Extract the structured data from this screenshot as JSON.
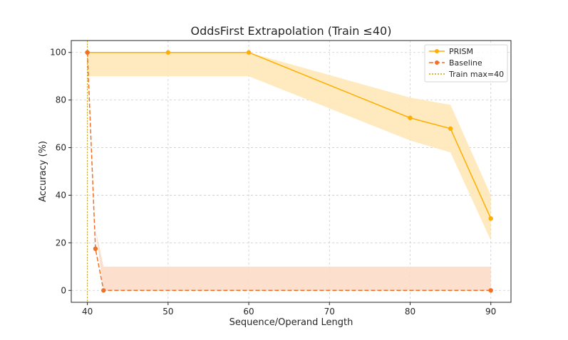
{
  "chart_data": {
    "type": "line",
    "title": "OddsFirst Extrapolation (Train ≤40)",
    "xlabel": "Sequence/Operand Length",
    "ylabel": "Accuracy (%)",
    "xlim": [
      38,
      92.5
    ],
    "ylim": [
      -5,
      105
    ],
    "xticks": [
      40,
      50,
      60,
      70,
      80,
      90
    ],
    "yticks": [
      0,
      20,
      40,
      60,
      80,
      100
    ],
    "grid": true,
    "legend_position": "top-right",
    "series": [
      {
        "name": "PRISM",
        "color": "#ffae00",
        "line_style": "solid",
        "x": [
          40,
          50,
          60,
          80,
          85,
          90
        ],
        "y": [
          100,
          100,
          100,
          72.5,
          68,
          30.2
        ],
        "band_lower": [
          90,
          90,
          90,
          63,
          58,
          21
        ],
        "band_upper": [
          100,
          100,
          100,
          81,
          78,
          40
        ],
        "band_color": "#ffe8b8"
      },
      {
        "name": "Baseline",
        "color": "#ef7127",
        "line_style": "dashed",
        "x": [
          40,
          41,
          42,
          90
        ],
        "y": [
          100,
          17.5,
          0,
          0
        ],
        "band_lower": [
          100,
          26,
          0,
          0
        ],
        "band_upper": [
          100,
          26,
          10,
          10
        ],
        "band_color": "#fcdcc8"
      }
    ],
    "reference_lines": [
      {
        "name": "Train max=40",
        "x": 40,
        "color": "#c9a400",
        "line_style": "dotted"
      }
    ]
  }
}
